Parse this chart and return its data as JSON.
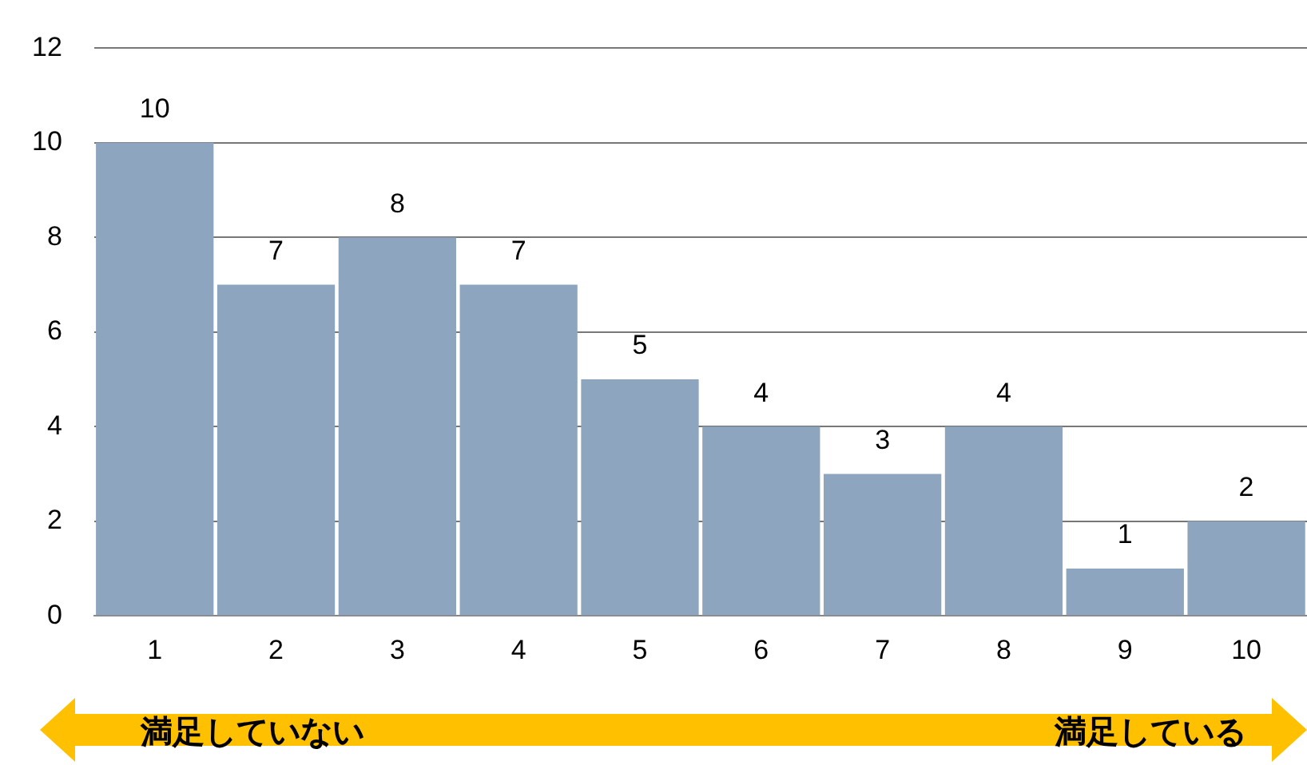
{
  "chart_data": {
    "type": "bar",
    "categories": [
      "1",
      "2",
      "3",
      "4",
      "5",
      "6",
      "7",
      "8",
      "9",
      "10"
    ],
    "values": [
      10,
      7,
      8,
      7,
      5,
      4,
      3,
      4,
      1,
      2
    ],
    "color": "#8ea5bf",
    "ylim": [
      0,
      12
    ],
    "yticks": [
      0,
      2,
      4,
      6,
      8,
      10,
      12
    ],
    "grid": "y",
    "legend": false,
    "data_labels": true,
    "annotations": [
      "満足していない",
      "満足している"
    ]
  }
}
